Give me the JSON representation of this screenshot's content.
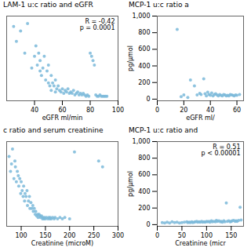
{
  "chart_data": [
    {
      "type": "scatter",
      "title": "LAM-1 u:c ratio and eGFR",
      "xlabel": "eGFR ml/min",
      "color": "#7ab8d9",
      "grid": false,
      "tick_labels": "x",
      "xlim": [
        20,
        100
      ],
      "ylim": [
        -0.02,
        0.55
      ],
      "xticks": [
        40,
        60,
        80,
        100
      ],
      "annotations": [
        "R = -0.42\np = 0.0001"
      ],
      "x": [
        25,
        27,
        30,
        33,
        35,
        38,
        40,
        41,
        42,
        43,
        44,
        44,
        45,
        46,
        47,
        48,
        49,
        50,
        50,
        51,
        52,
        52,
        53,
        54,
        55,
        55,
        56,
        57,
        58,
        59,
        60,
        61,
        62,
        63,
        64,
        65,
        66,
        67,
        68,
        69,
        70,
        71,
        72,
        73,
        74,
        75,
        76,
        77,
        78,
        79,
        80,
        81,
        82,
        83,
        84,
        85,
        86,
        87,
        88,
        89,
        90,
        91,
        92
      ],
      "values": [
        0.48,
        0.38,
        0.45,
        0.3,
        0.5,
        0.2,
        0.28,
        0.35,
        0.22,
        0.3,
        0.18,
        0.25,
        0.15,
        0.2,
        0.28,
        0.12,
        0.18,
        0.22,
        0.1,
        0.08,
        0.15,
        0.05,
        0.1,
        0.08,
        0.12,
        0.04,
        0.06,
        0.08,
        0.05,
        0.04,
        0.06,
        0.03,
        0.05,
        0.04,
        0.06,
        0.03,
        0.04,
        0.03,
        0.05,
        0.02,
        0.03,
        0.04,
        0.02,
        0.03,
        0.02,
        0.03,
        0.02,
        0.01,
        0.02,
        0.01,
        0.3,
        0.28,
        0.25,
        0.22,
        0.02,
        0.01,
        0.01,
        0.02,
        0.01,
        0.01,
        0.01,
        0.01,
        0.01
      ]
    },
    {
      "type": "scatter",
      "title": "MCP-1 u:c ratio a",
      "xlabel": "eGFR ml/",
      "ylabel": "pg/μmol",
      "color": "#7ab8d9",
      "grid": false,
      "xlim": [
        0,
        65
      ],
      "ylim": [
        -20,
        1000
      ],
      "xticks": [
        0,
        20,
        40,
        60
      ],
      "yticks": [
        0,
        200,
        400,
        600,
        800,
        1000
      ],
      "x": [
        15,
        18,
        20,
        23,
        25,
        28,
        30,
        32,
        33,
        35,
        36,
        37,
        38,
        39,
        40,
        41,
        42,
        43,
        44,
        45,
        46,
        47,
        48,
        49,
        50,
        51,
        52,
        53,
        54,
        55,
        56,
        57,
        58,
        59,
        60,
        62
      ],
      "values": [
        840,
        30,
        50,
        20,
        230,
        160,
        50,
        70,
        55,
        245,
        65,
        40,
        85,
        55,
        45,
        75,
        40,
        55,
        65,
        50,
        38,
        55,
        45,
        40,
        55,
        50,
        38,
        45,
        40,
        55,
        50,
        45,
        40,
        50,
        45,
        55
      ]
    },
    {
      "type": "scatter",
      "title": "c ratio and serum creatinine",
      "xlabel": "Creatinine (microM)",
      "color": "#7ab8d9",
      "grid": false,
      "tick_labels": "x",
      "xlim": [
        70,
        300
      ],
      "ylim": [
        -0.02,
        0.55
      ],
      "xticks": [
        100,
        150,
        200,
        250,
        300
      ],
      "x": [
        75,
        78,
        80,
        82,
        85,
        87,
        88,
        90,
        92,
        94,
        95,
        97,
        99,
        100,
        102,
        104,
        105,
        107,
        108,
        110,
        112,
        113,
        115,
        117,
        118,
        120,
        122,
        124,
        125,
        127,
        129,
        130,
        132,
        134,
        135,
        137,
        139,
        140,
        142,
        144,
        145,
        147,
        148,
        150,
        152,
        155,
        157,
        159,
        160,
        162,
        165,
        168,
        170,
        175,
        180,
        185,
        190,
        200,
        210,
        260,
        268
      ],
      "values": [
        0.45,
        0.35,
        0.4,
        0.5,
        0.3,
        0.42,
        0.38,
        0.28,
        0.35,
        0.32,
        0.25,
        0.3,
        0.2,
        0.28,
        0.22,
        0.18,
        0.25,
        0.15,
        0.2,
        0.18,
        0.22,
        0.12,
        0.15,
        0.18,
        0.1,
        0.14,
        0.1,
        0.12,
        0.08,
        0.1,
        0.06,
        0.08,
        0.05,
        0.06,
        0.04,
        0.06,
        0.05,
        0.04,
        0.05,
        0.03,
        0.04,
        0.03,
        0.04,
        0.03,
        0.04,
        0.03,
        0.04,
        0.03,
        0.04,
        0.03,
        0.04,
        0.03,
        0.04,
        0.03,
        0.04,
        0.03,
        0.04,
        0.03,
        0.48,
        0.42,
        0.38
      ]
    },
    {
      "type": "scatter",
      "title": "MCP-1 u:c ratio and",
      "xlabel": "Creatinine (micr",
      "ylabel": "pg/μmol",
      "color": "#7ab8d9",
      "grid": false,
      "xlim": [
        0,
        175
      ],
      "ylim": [
        -20,
        1000
      ],
      "xticks": [
        0,
        50,
        100,
        150
      ],
      "yticks": [
        0,
        200,
        400,
        600,
        800,
        1000
      ],
      "annotations": [
        "R = 0.51\np < 0.00001"
      ],
      "x": [
        10,
        15,
        20,
        25,
        30,
        35,
        40,
        45,
        50,
        55,
        60,
        62,
        65,
        67,
        70,
        72,
        75,
        77,
        80,
        82,
        85,
        87,
        90,
        92,
        95,
        97,
        100,
        102,
        105,
        107,
        110,
        112,
        115,
        118,
        120,
        122,
        125,
        128,
        130,
        132,
        135,
        137,
        140,
        142,
        145,
        148,
        150,
        152,
        155,
        158,
        160,
        162,
        165,
        168,
        170
      ],
      "values": [
        25,
        20,
        30,
        20,
        35,
        25,
        30,
        20,
        25,
        30,
        35,
        25,
        30,
        25,
        35,
        25,
        30,
        35,
        40,
        30,
        35,
        30,
        40,
        30,
        35,
        30,
        40,
        35,
        40,
        30,
        45,
        35,
        40,
        35,
        50,
        40,
        45,
        35,
        40,
        30,
        45,
        35,
        260,
        40,
        45,
        35,
        40,
        45,
        50,
        40,
        45,
        40,
        50,
        210,
        55
      ]
    }
  ]
}
